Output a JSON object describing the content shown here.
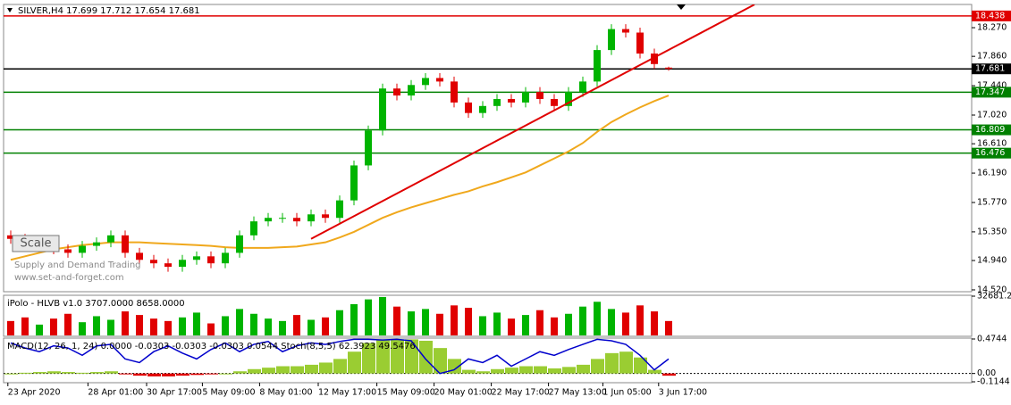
{
  "chart_data": [
    {
      "type": "candlestick",
      "title": "SILVER,H4  17.699 17.712 17.654 17.681",
      "watermark": [
        "Supply and Demand Trading",
        "www.set-and-forget.com"
      ],
      "button": "Scale",
      "open": [
        15.3,
        15.25,
        15.15,
        15.2,
        15.1,
        15.05,
        15.15,
        15.2,
        15.3,
        15.05,
        14.95,
        14.9,
        14.85,
        14.95,
        15.0,
        14.9,
        15.05,
        15.3,
        15.5,
        15.55,
        15.55,
        15.5,
        15.6,
        15.55,
        15.8,
        16.3,
        16.8,
        17.4,
        17.3,
        17.45,
        17.55,
        17.5,
        17.2,
        17.05,
        17.15,
        17.25,
        17.2,
        17.35,
        17.25,
        17.15,
        17.35,
        17.5,
        17.95,
        18.25,
        18.2,
        17.9,
        17.699
      ],
      "high": [
        15.37,
        15.32,
        15.27,
        15.27,
        15.17,
        15.22,
        15.27,
        15.37,
        15.37,
        15.12,
        15.02,
        14.97,
        15.02,
        15.07,
        15.07,
        15.12,
        15.37,
        15.57,
        15.62,
        15.62,
        15.62,
        15.67,
        15.67,
        15.87,
        16.37,
        16.87,
        17.47,
        17.47,
        17.52,
        17.62,
        17.62,
        17.57,
        17.27,
        17.22,
        17.32,
        17.32,
        17.42,
        17.42,
        17.32,
        17.42,
        17.57,
        18.02,
        18.32,
        18.32,
        18.27,
        17.97,
        17.712
      ],
      "low": [
        15.18,
        15.08,
        15.08,
        15.03,
        14.98,
        14.98,
        15.08,
        15.13,
        14.98,
        14.88,
        14.83,
        14.78,
        14.78,
        14.88,
        14.83,
        14.83,
        14.98,
        15.23,
        15.43,
        15.48,
        15.43,
        15.43,
        15.48,
        15.48,
        15.73,
        16.23,
        16.73,
        17.23,
        17.23,
        17.38,
        17.43,
        17.13,
        16.98,
        16.98,
        17.08,
        17.13,
        17.13,
        17.18,
        17.08,
        17.08,
        17.28,
        17.43,
        17.88,
        18.13,
        17.83,
        17.68,
        17.654
      ],
      "close": [
        15.25,
        15.15,
        15.2,
        15.1,
        15.05,
        15.15,
        15.2,
        15.3,
        15.05,
        14.95,
        14.9,
        14.85,
        14.95,
        15.0,
        14.9,
        15.05,
        15.3,
        15.5,
        15.55,
        15.55,
        15.5,
        15.6,
        15.55,
        15.8,
        16.3,
        16.8,
        17.4,
        17.3,
        17.45,
        17.55,
        17.5,
        17.2,
        17.05,
        17.15,
        17.25,
        17.2,
        17.35,
        17.25,
        17.15,
        17.35,
        17.5,
        17.95,
        18.25,
        18.2,
        17.9,
        17.75,
        17.681
      ],
      "up_color": "#00b400",
      "down_color": "#e00000",
      "ma": {
        "color": "#f0a81c",
        "values": [
          14.95,
          15.0,
          15.05,
          15.1,
          15.13,
          15.16,
          15.18,
          15.2,
          15.2,
          15.2,
          15.19,
          15.18,
          15.17,
          15.16,
          15.15,
          15.13,
          15.12,
          15.12,
          15.12,
          15.13,
          15.14,
          15.17,
          15.2,
          15.27,
          15.35,
          15.45,
          15.55,
          15.63,
          15.7,
          15.76,
          15.82,
          15.88,
          15.93,
          16.0,
          16.06,
          16.13,
          16.2,
          16.3,
          16.4,
          16.5,
          16.62,
          16.78,
          16.92,
          17.03,
          17.13,
          17.22,
          17.3
        ]
      },
      "trendline": {
        "color": "#e00000",
        "x": [
          21,
          52
        ],
        "values": [
          15.25,
          18.6
        ]
      },
      "levels": [
        {
          "value": 18.438,
          "color": "#e00000"
        },
        {
          "value": 17.681,
          "color": "#000000"
        },
        {
          "value": 17.347,
          "color": "#008000"
        },
        {
          "value": 16.809,
          "color": "#008000"
        },
        {
          "value": 16.476,
          "color": "#008000"
        }
      ],
      "ylim": [
        14.494,
        18.602
      ],
      "yticks": [
        {
          "value": 14.52,
          "label": "14.520"
        },
        {
          "value": 14.94,
          "label": "14.940"
        },
        {
          "value": 15.35,
          "label": "15.350"
        },
        {
          "value": 15.77,
          "label": "15.770"
        },
        {
          "value": 16.19,
          "label": "16.190"
        },
        {
          "value": 16.61,
          "label": "16.610"
        },
        {
          "value": 17.02,
          "label": "17.020"
        },
        {
          "value": 17.44,
          "label": "17.440"
        },
        {
          "value": 17.86,
          "label": "17.860"
        },
        {
          "value": 18.27,
          "label": "18.270"
        }
      ]
    },
    {
      "type": "bar",
      "title": "iPolo - HLVB v1.0 3707.0000 8658.0000",
      "values": [
        12000,
        15000,
        9000,
        14000,
        18000,
        11000,
        16000,
        13000,
        20000,
        17000,
        14000,
        12000,
        15000,
        19000,
        10000,
        16000,
        22000,
        18000,
        14000,
        12000,
        17000,
        13000,
        15000,
        21000,
        26000,
        30000,
        32000,
        24000,
        20000,
        22000,
        18000,
        25000,
        23000,
        16000,
        19000,
        14000,
        17000,
        21000,
        15000,
        18000,
        24000,
        28000,
        22000,
        19000,
        25000,
        20000,
        12000
      ],
      "ylim": [
        0,
        32681.25
      ],
      "yticks": [
        32681.25
      ]
    },
    {
      "type": "macd",
      "title": "MACD(12, 26, 1, 24) 0.0000 -0.0303 -0.0303 -0.0303 0.0544  Stoch(8,5,5) 62.3923 49.5476",
      "series": [
        {
          "color": "#9acd32",
          "negative_color": "#e00000",
          "values": [
            0.0,
            0.01,
            0.02,
            0.03,
            0.02,
            0.01,
            0.02,
            0.03,
            -0.01,
            -0.03,
            -0.04,
            -0.04,
            -0.03,
            -0.02,
            -0.01,
            0.0,
            0.03,
            0.06,
            0.08,
            0.1,
            0.1,
            0.12,
            0.15,
            0.2,
            0.3,
            0.42,
            0.47,
            0.47,
            0.47,
            0.45,
            0.35,
            0.2,
            0.05,
            0.03,
            0.06,
            0.08,
            0.1,
            0.1,
            0.07,
            0.09,
            0.12,
            0.2,
            0.28,
            0.3,
            0.22,
            0.05,
            -0.0303
          ]
        },
        {
          "color": "#0000cc",
          "values": [
            0.42,
            0.35,
            0.3,
            0.38,
            0.35,
            0.25,
            0.38,
            0.4,
            0.2,
            0.15,
            0.3,
            0.38,
            0.28,
            0.2,
            0.33,
            0.42,
            0.3,
            0.4,
            0.44,
            0.3,
            0.38,
            0.42,
            0.4,
            0.44,
            0.47,
            0.47,
            0.46,
            0.47,
            0.45,
            0.2,
            0.0,
            0.05,
            0.2,
            0.15,
            0.25,
            0.1,
            0.2,
            0.3,
            0.25,
            0.33,
            0.4,
            0.47,
            0.45,
            0.4,
            0.25,
            0.05,
            0.2
          ]
        }
      ],
      "ylim": [
        -0.1144,
        0.4744
      ],
      "yticks": [
        0.4744,
        {
          "value": 0,
          "label": "0.00"
        },
        -0.1144
      ],
      "xticks": [
        {
          "value": -0.2,
          "label": "23 Apr 2020"
        },
        {
          "value": 5.4,
          "label": "28 Apr 01:00"
        },
        {
          "value": 9.5,
          "label": "30 Apr 17:00"
        },
        {
          "value": 13.4,
          "label": "5 May 09:00"
        },
        {
          "value": 17.4,
          "label": "8 May 01:00"
        },
        {
          "value": 21.5,
          "label": "12 May 17:00"
        },
        {
          "value": 25.6,
          "label": "15 May 09:00"
        },
        {
          "value": 29.6,
          "label": "20 May 01:00"
        },
        {
          "value": 33.6,
          "label": "22 May 17:00"
        },
        {
          "value": 37.6,
          "label": "27 May 13:00"
        },
        {
          "value": 41.4,
          "label": "1 Jun 05:00"
        },
        {
          "value": 45.3,
          "label": "3 Jun 17:00"
        }
      ]
    }
  ]
}
